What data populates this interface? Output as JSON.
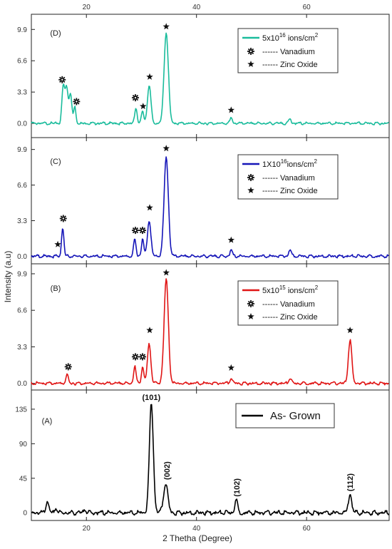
{
  "chart_data": {
    "type": "line",
    "xlabel": "2 Thetha (Degree)",
    "ylabel": "Intensity (a.u)",
    "xlim": [
      10,
      75
    ],
    "xticks": [
      20,
      40,
      60
    ],
    "x_tick_labels": [
      "20",
      "40",
      "60"
    ],
    "marker_colors": {
      "vanadium": "#111111",
      "zinc_oxide": "#111111"
    },
    "panels": [
      {
        "id": "D",
        "label": "(D)",
        "color": "#1abc9c",
        "ylim": [
          -1.5,
          11.5
        ],
        "yticks": [
          0.0,
          3.3,
          6.6,
          9.9
        ],
        "ytick_labels": [
          "0.0",
          "3.3",
          "6.6",
          "9.9"
        ],
        "legend": {
          "series": "5x10",
          "exp": "16",
          "unit": " ions/cm",
          "unit_exp": "2",
          "vanadium": "------ Vanadium",
          "zinc": "------ Zinc Oxide"
        },
        "peaks": [
          {
            "x": 15.8,
            "y": 3.9,
            "w": 0.35
          },
          {
            "x": 16.4,
            "y": 3.8,
            "w": 0.35
          },
          {
            "x": 17.1,
            "y": 3.2,
            "w": 0.35
          },
          {
            "x": 17.9,
            "y": 1.7,
            "w": 0.3
          },
          {
            "x": 29.0,
            "y": 1.7,
            "w": 0.3
          },
          {
            "x": 30.2,
            "y": 1.3,
            "w": 0.3
          },
          {
            "x": 31.4,
            "y": 4.0,
            "w": 0.45
          },
          {
            "x": 34.5,
            "y": 9.6,
            "w": 0.55
          },
          {
            "x": 46.3,
            "y": 0.6,
            "w": 0.3
          },
          {
            "x": 57.0,
            "y": 0.5,
            "w": 0.3
          }
        ],
        "markers": [
          {
            "type": "vanadium",
            "x": 15.6,
            "y": 4.6
          },
          {
            "type": "vanadium",
            "x": 18.2,
            "y": 2.3
          },
          {
            "type": "vanadium",
            "x": 28.9,
            "y": 2.7
          },
          {
            "type": "zinc_oxide",
            "x": 30.3,
            "y": 1.8
          },
          {
            "type": "zinc_oxide",
            "x": 31.5,
            "y": 4.9
          },
          {
            "type": "zinc_oxide",
            "x": 34.5,
            "y": 10.2
          },
          {
            "type": "zinc_oxide",
            "x": 46.3,
            "y": 1.4
          }
        ]
      },
      {
        "id": "C",
        "label": "(C)",
        "color": "#1515b8",
        "ylim": [
          -0.7,
          11.0
        ],
        "yticks": [
          0.0,
          3.3,
          6.6,
          9.9
        ],
        "ytick_labels": [
          "0.0",
          "3.3",
          "6.6",
          "9.9"
        ],
        "legend": {
          "series": "1X10",
          "exp": "16",
          "unit": "ions/cm",
          "unit_exp": "2",
          "vanadium": "------ Vanadium",
          "zinc": "------ Zinc Oxide"
        },
        "peaks": [
          {
            "x": 15.7,
            "y": 2.6,
            "w": 0.3
          },
          {
            "x": 28.8,
            "y": 1.6,
            "w": 0.3
          },
          {
            "x": 30.2,
            "y": 1.6,
            "w": 0.3
          },
          {
            "x": 31.4,
            "y": 3.3,
            "w": 0.45
          },
          {
            "x": 34.5,
            "y": 9.2,
            "w": 0.55
          },
          {
            "x": 46.3,
            "y": 0.6,
            "w": 0.3
          },
          {
            "x": 57.0,
            "y": 0.6,
            "w": 0.3
          }
        ],
        "markers": [
          {
            "type": "zinc_oxide",
            "x": 14.8,
            "y": 1.1
          },
          {
            "type": "vanadium",
            "x": 15.8,
            "y": 3.5
          },
          {
            "type": "vanadium",
            "x": 28.9,
            "y": 2.4
          },
          {
            "type": "vanadium",
            "x": 30.2,
            "y": 2.4
          },
          {
            "type": "zinc_oxide",
            "x": 31.5,
            "y": 4.5
          },
          {
            "type": "zinc_oxide",
            "x": 34.5,
            "y": 10.0
          },
          {
            "type": "zinc_oxide",
            "x": 46.3,
            "y": 1.5
          }
        ]
      },
      {
        "id": "B",
        "label": "(B)",
        "color": "#e01515",
        "ylim": [
          -0.6,
          10.8
        ],
        "yticks": [
          0.0,
          3.3,
          6.6,
          9.9
        ],
        "ytick_labels": [
          "0.0",
          "3.3",
          "6.6",
          "9.9"
        ],
        "legend": {
          "series": "5x10",
          "exp": "15",
          "unit": " ions/cm",
          "unit_exp": "2",
          "vanadium": "------ Vanadium",
          "zinc": "------ Zinc Oxide"
        },
        "peaks": [
          {
            "x": 16.5,
            "y": 0.7,
            "w": 0.35
          },
          {
            "x": 28.8,
            "y": 1.6,
            "w": 0.3
          },
          {
            "x": 30.2,
            "y": 1.5,
            "w": 0.3
          },
          {
            "x": 31.4,
            "y": 3.5,
            "w": 0.45
          },
          {
            "x": 34.5,
            "y": 9.4,
            "w": 0.55
          },
          {
            "x": 46.3,
            "y": 0.5,
            "w": 0.3
          },
          {
            "x": 57.0,
            "y": 0.5,
            "w": 0.3
          },
          {
            "x": 67.9,
            "y": 3.9,
            "w": 0.45
          }
        ],
        "markers": [
          {
            "type": "vanadium",
            "x": 16.7,
            "y": 1.5
          },
          {
            "type": "vanadium",
            "x": 28.9,
            "y": 2.4
          },
          {
            "type": "vanadium",
            "x": 30.2,
            "y": 2.4
          },
          {
            "type": "zinc_oxide",
            "x": 31.5,
            "y": 4.8
          },
          {
            "type": "zinc_oxide",
            "x": 34.5,
            "y": 10.0
          },
          {
            "type": "zinc_oxide",
            "x": 46.3,
            "y": 1.4
          },
          {
            "type": "zinc_oxide",
            "x": 67.9,
            "y": 4.8
          }
        ]
      },
      {
        "id": "A",
        "label": "(A)",
        "color": "#000000",
        "ylim": [
          -10,
          160
        ],
        "yticks": [
          0,
          45,
          90,
          135
        ],
        "ytick_labels": [
          "0",
          "45",
          "90",
          "135"
        ],
        "legend": {
          "series": "As- Grown"
        },
        "peaks": [
          {
            "x": 12.9,
            "y": 15,
            "w": 0.35
          },
          {
            "x": 14.5,
            "y": 6,
            "w": 0.3
          },
          {
            "x": 19.8,
            "y": 5,
            "w": 0.3
          },
          {
            "x": 31.8,
            "y": 143,
            "w": 0.5
          },
          {
            "x": 34.4,
            "y": 38,
            "w": 0.55
          },
          {
            "x": 47.2,
            "y": 17,
            "w": 0.35
          },
          {
            "x": 67.9,
            "y": 24,
            "w": 0.45
          }
        ],
        "annotations": [
          {
            "text": "(101)",
            "x": 31.8,
            "y": 147,
            "rotate": false
          },
          {
            "text": "(002)",
            "x": 34.6,
            "y": 43,
            "rotate": true
          },
          {
            "text": "(102)",
            "x": 47.3,
            "y": 21,
            "rotate": true
          },
          {
            "text": "(112)",
            "x": 67.9,
            "y": 28,
            "rotate": true
          }
        ]
      }
    ]
  }
}
